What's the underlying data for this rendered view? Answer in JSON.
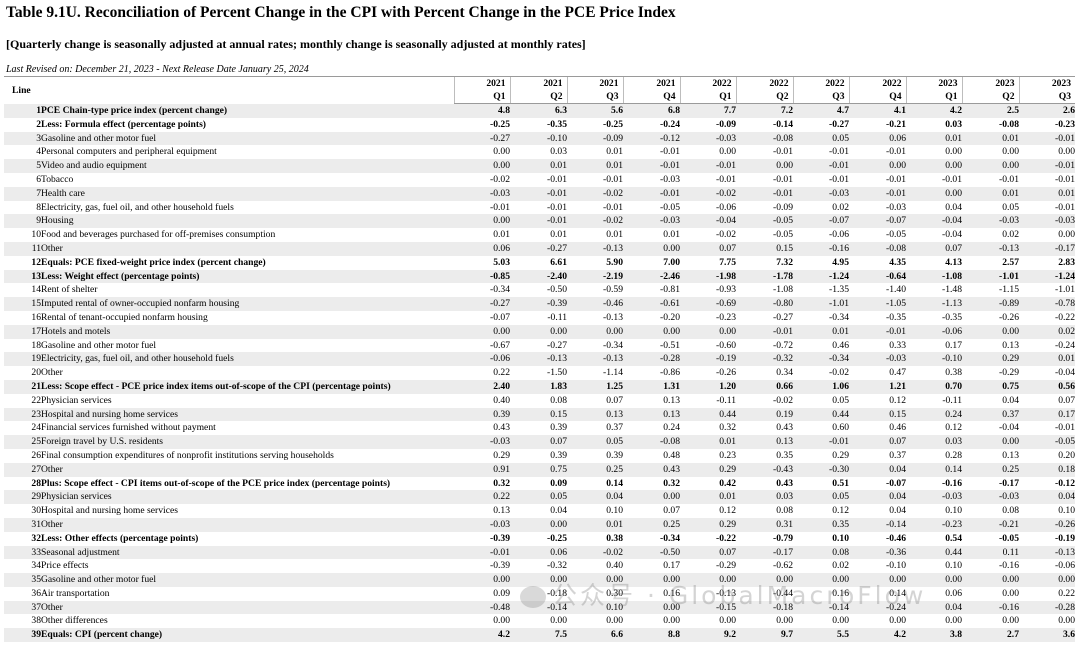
{
  "title": "Table 9.1U. Reconciliation of Percent Change in the CPI with Percent Change in the PCE Price Index",
  "subtitle": "[Quarterly change is seasonally adjusted at annual rates; monthly change is seasonally adjusted at monthly rates]",
  "revised": "Last Revised on: December 21, 2023 - Next Release Date January 25, 2024",
  "line_header": "Line",
  "periods": [
    {
      "year": "2021",
      "q": "Q1"
    },
    {
      "year": "2021",
      "q": "Q2"
    },
    {
      "year": "2021",
      "q": "Q3"
    },
    {
      "year": "2021",
      "q": "Q4"
    },
    {
      "year": "2022",
      "q": "Q1"
    },
    {
      "year": "2022",
      "q": "Q2"
    },
    {
      "year": "2022",
      "q": "Q3"
    },
    {
      "year": "2022",
      "q": "Q4"
    },
    {
      "year": "2023",
      "q": "Q1"
    },
    {
      "year": "2023",
      "q": "Q2"
    },
    {
      "year": "2023",
      "q": "Q3"
    }
  ],
  "rows": [
    {
      "line": "1",
      "label": "PCE Chain-type price index (percent change)",
      "level": 0,
      "bold": true,
      "values": [
        "4.8",
        "6.3",
        "5.6",
        "6.8",
        "7.7",
        "7.2",
        "4.7",
        "4.1",
        "4.2",
        "2.5",
        "2.6"
      ]
    },
    {
      "line": "2",
      "label": "Less: Formula effect (percentage points)",
      "level": 1,
      "bold": true,
      "values": [
        "-0.25",
        "-0.35",
        "-0.25",
        "-0.24",
        "-0.09",
        "-0.14",
        "-0.27",
        "-0.21",
        "0.03",
        "-0.08",
        "-0.23"
      ]
    },
    {
      "line": "3",
      "label": "Gasoline and other motor fuel",
      "level": 2,
      "bold": false,
      "values": [
        "-0.27",
        "-0.10",
        "-0.09",
        "-0.12",
        "-0.03",
        "-0.08",
        "0.05",
        "0.06",
        "0.01",
        "0.01",
        "-0.01"
      ]
    },
    {
      "line": "4",
      "label": "Personal computers and peripheral equipment",
      "level": 2,
      "bold": false,
      "values": [
        "0.00",
        "0.03",
        "0.01",
        "-0.01",
        "0.00",
        "-0.01",
        "-0.01",
        "-0.01",
        "0.00",
        "0.00",
        "0.00"
      ]
    },
    {
      "line": "5",
      "label": "Video and audio equipment",
      "level": 2,
      "bold": false,
      "values": [
        "0.00",
        "0.01",
        "0.01",
        "-0.01",
        "-0.01",
        "0.00",
        "-0.01",
        "0.00",
        "0.00",
        "0.00",
        "-0.01"
      ]
    },
    {
      "line": "6",
      "label": "Tobacco",
      "level": 2,
      "bold": false,
      "values": [
        "-0.02",
        "-0.01",
        "-0.01",
        "-0.03",
        "-0.01",
        "-0.01",
        "-0.01",
        "-0.01",
        "-0.01",
        "-0.01",
        "-0.01"
      ]
    },
    {
      "line": "7",
      "label": "Health care",
      "level": 2,
      "bold": false,
      "values": [
        "-0.03",
        "-0.01",
        "-0.02",
        "-0.01",
        "-0.02",
        "-0.01",
        "-0.03",
        "-0.01",
        "0.00",
        "0.01",
        "0.01"
      ]
    },
    {
      "line": "8",
      "label": "Electricity, gas, fuel oil, and other household fuels",
      "level": 2,
      "bold": false,
      "values": [
        "-0.01",
        "-0.01",
        "-0.01",
        "-0.05",
        "-0.06",
        "-0.09",
        "0.02",
        "-0.03",
        "0.04",
        "0.05",
        "-0.01"
      ]
    },
    {
      "line": "9",
      "label": "Housing",
      "level": 2,
      "bold": false,
      "values": [
        "0.00",
        "-0.01",
        "-0.02",
        "-0.03",
        "-0.04",
        "-0.05",
        "-0.07",
        "-0.07",
        "-0.04",
        "-0.03",
        "-0.03"
      ]
    },
    {
      "line": "10",
      "label": "Food and beverages purchased for off-premises consumption",
      "level": 2,
      "bold": false,
      "values": [
        "0.01",
        "0.01",
        "0.01",
        "0.01",
        "-0.02",
        "-0.05",
        "-0.06",
        "-0.05",
        "-0.04",
        "0.02",
        "0.00"
      ]
    },
    {
      "line": "11",
      "label": "Other",
      "level": 2,
      "bold": false,
      "values": [
        "0.06",
        "-0.27",
        "-0.13",
        "0.00",
        "0.07",
        "0.15",
        "-0.16",
        "-0.08",
        "0.07",
        "-0.13",
        "-0.17"
      ]
    },
    {
      "line": "12",
      "label": "Equals: PCE fixed-weight price index (percent change)",
      "level": 0,
      "bold": true,
      "values": [
        "5.03",
        "6.61",
        "5.90",
        "7.00",
        "7.75",
        "7.32",
        "4.95",
        "4.35",
        "4.13",
        "2.57",
        "2.83"
      ]
    },
    {
      "line": "13",
      "label": "Less: Weight effect (percentage points)",
      "level": 1,
      "bold": true,
      "values": [
        "-0.85",
        "-2.40",
        "-2.19",
        "-2.46",
        "-1.98",
        "-1.78",
        "-1.24",
        "-0.64",
        "-1.08",
        "-1.01",
        "-1.24"
      ]
    },
    {
      "line": "14",
      "label": "Rent of shelter",
      "level": 2,
      "bold": false,
      "values": [
        "-0.34",
        "-0.50",
        "-0.59",
        "-0.81",
        "-0.93",
        "-1.08",
        "-1.35",
        "-1.40",
        "-1.48",
        "-1.15",
        "-1.01"
      ]
    },
    {
      "line": "15",
      "label": "Imputed rental of owner-occupied nonfarm housing",
      "level": 3,
      "bold": false,
      "values": [
        "-0.27",
        "-0.39",
        "-0.46",
        "-0.61",
        "-0.69",
        "-0.80",
        "-1.01",
        "-1.05",
        "-1.13",
        "-0.89",
        "-0.78"
      ]
    },
    {
      "line": "16",
      "label": "Rental of tenant-occupied nonfarm housing",
      "level": 3,
      "bold": false,
      "values": [
        "-0.07",
        "-0.11",
        "-0.13",
        "-0.20",
        "-0.23",
        "-0.27",
        "-0.34",
        "-0.35",
        "-0.35",
        "-0.26",
        "-0.22"
      ]
    },
    {
      "line": "17",
      "label": "Hotels and motels",
      "level": 2,
      "bold": false,
      "values": [
        "0.00",
        "0.00",
        "0.00",
        "0.00",
        "0.00",
        "-0.01",
        "0.01",
        "-0.01",
        "-0.06",
        "0.00",
        "0.02"
      ]
    },
    {
      "line": "18",
      "label": "Gasoline and other motor fuel",
      "level": 2,
      "bold": false,
      "values": [
        "-0.67",
        "-0.27",
        "-0.34",
        "-0.51",
        "-0.60",
        "-0.72",
        "0.46",
        "0.33",
        "0.17",
        "0.13",
        "-0.24"
      ]
    },
    {
      "line": "19",
      "label": "Electricity, gas, fuel oil, and other household fuels",
      "level": 2,
      "bold": false,
      "values": [
        "-0.06",
        "-0.13",
        "-0.13",
        "-0.28",
        "-0.19",
        "-0.32",
        "-0.34",
        "-0.03",
        "-0.10",
        "0.29",
        "0.01"
      ]
    },
    {
      "line": "20",
      "label": "Other",
      "level": 2,
      "bold": false,
      "values": [
        "0.22",
        "-1.50",
        "-1.14",
        "-0.86",
        "-0.26",
        "0.34",
        "-0.02",
        "0.47",
        "0.38",
        "-0.29",
        "-0.04"
      ]
    },
    {
      "line": "21",
      "label": "Less: Scope effect - PCE price index items out-of-scope of the CPI (percentage points)",
      "level": 1,
      "bold": true,
      "values": [
        "2.40",
        "1.83",
        "1.25",
        "1.31",
        "1.20",
        "0.66",
        "1.06",
        "1.21",
        "0.70",
        "0.75",
        "0.56"
      ]
    },
    {
      "line": "22",
      "label": "Physician services",
      "level": 2,
      "bold": false,
      "values": [
        "0.40",
        "0.08",
        "0.07",
        "0.13",
        "-0.11",
        "-0.02",
        "0.05",
        "0.12",
        "-0.11",
        "0.04",
        "0.07"
      ]
    },
    {
      "line": "23",
      "label": "Hospital and nursing home services",
      "level": 2,
      "bold": false,
      "values": [
        "0.39",
        "0.15",
        "0.13",
        "0.13",
        "0.44",
        "0.19",
        "0.44",
        "0.15",
        "0.24",
        "0.37",
        "0.17"
      ]
    },
    {
      "line": "24",
      "label": "Financial services furnished without payment",
      "level": 2,
      "bold": false,
      "values": [
        "0.43",
        "0.39",
        "0.37",
        "0.24",
        "0.32",
        "0.43",
        "0.60",
        "0.46",
        "0.12",
        "-0.04",
        "-0.01"
      ]
    },
    {
      "line": "25",
      "label": "Foreign travel by U.S. residents",
      "level": 2,
      "bold": false,
      "values": [
        "-0.03",
        "0.07",
        "0.05",
        "-0.08",
        "0.01",
        "0.13",
        "-0.01",
        "0.07",
        "0.03",
        "0.00",
        "-0.05"
      ]
    },
    {
      "line": "26",
      "label": "Final consumption expenditures of nonprofit institutions serving households",
      "level": 2,
      "bold": false,
      "values": [
        "0.29",
        "0.39",
        "0.39",
        "0.48",
        "0.23",
        "0.35",
        "0.29",
        "0.37",
        "0.28",
        "0.13",
        "0.20"
      ]
    },
    {
      "line": "27",
      "label": "Other",
      "level": 2,
      "bold": false,
      "values": [
        "0.91",
        "0.75",
        "0.25",
        "0.43",
        "0.29",
        "-0.43",
        "-0.30",
        "0.04",
        "0.14",
        "0.25",
        "0.18"
      ]
    },
    {
      "line": "28",
      "label": "Plus: Scope effect - CPI items out-of-scope of the PCE price index (percentage points)",
      "level": 1,
      "bold": true,
      "values": [
        "0.32",
        "0.09",
        "0.14",
        "0.32",
        "0.42",
        "0.43",
        "0.51",
        "-0.07",
        "-0.16",
        "-0.17",
        "-0.12"
      ]
    },
    {
      "line": "29",
      "label": "Physician services",
      "level": 2,
      "bold": false,
      "values": [
        "0.22",
        "0.05",
        "0.04",
        "0.00",
        "0.01",
        "0.03",
        "0.05",
        "0.04",
        "-0.03",
        "-0.03",
        "0.04"
      ]
    },
    {
      "line": "30",
      "label": "Hospital and nursing home services",
      "level": 2,
      "bold": false,
      "values": [
        "0.13",
        "0.04",
        "0.10",
        "0.07",
        "0.12",
        "0.08",
        "0.12",
        "0.04",
        "0.10",
        "0.08",
        "0.10"
      ]
    },
    {
      "line": "31",
      "label": "Other",
      "level": 2,
      "bold": false,
      "values": [
        "-0.03",
        "0.00",
        "0.01",
        "0.25",
        "0.29",
        "0.31",
        "0.35",
        "-0.14",
        "-0.23",
        "-0.21",
        "-0.26"
      ]
    },
    {
      "line": "32",
      "label": "Less: Other effects (percentage points)",
      "level": 1,
      "bold": true,
      "values": [
        "-0.39",
        "-0.25",
        "0.38",
        "-0.34",
        "-0.22",
        "-0.79",
        "0.10",
        "-0.46",
        "0.54",
        "-0.05",
        "-0.19"
      ]
    },
    {
      "line": "33",
      "label": "Seasonal adjustment",
      "level": 2,
      "bold": false,
      "values": [
        "-0.01",
        "0.06",
        "-0.02",
        "-0.50",
        "0.07",
        "-0.17",
        "0.08",
        "-0.36",
        "0.44",
        "0.11",
        "-0.13"
      ]
    },
    {
      "line": "34",
      "label": "Price effects",
      "level": 2,
      "bold": false,
      "values": [
        "-0.39",
        "-0.32",
        "0.40",
        "0.17",
        "-0.29",
        "-0.62",
        "0.02",
        "-0.10",
        "0.10",
        "-0.16",
        "-0.06"
      ]
    },
    {
      "line": "35",
      "label": "Gasoline and other motor fuel",
      "level": 3,
      "bold": false,
      "values": [
        "0.00",
        "0.00",
        "0.00",
        "0.00",
        "0.00",
        "0.00",
        "0.00",
        "0.00",
        "0.00",
        "0.00",
        "0.00"
      ]
    },
    {
      "line": "36",
      "label": "Air transportation",
      "level": 3,
      "bold": false,
      "values": [
        "0.09",
        "-0.18",
        "0.30",
        "0.16",
        "-0.13",
        "-0.44",
        "0.16",
        "0.14",
        "0.06",
        "0.00",
        "0.22"
      ]
    },
    {
      "line": "37",
      "label": "Other",
      "level": 3,
      "bold": false,
      "values": [
        "-0.48",
        "-0.14",
        "0.10",
        "0.00",
        "-0.15",
        "-0.18",
        "-0.14",
        "-0.24",
        "0.04",
        "-0.16",
        "-0.28"
      ]
    },
    {
      "line": "38",
      "label": "Other differences",
      "level": 2,
      "bold": false,
      "values": [
        "0.00",
        "0.00",
        "0.00",
        "0.00",
        "0.00",
        "0.00",
        "0.00",
        "0.00",
        "0.00",
        "0.00",
        "0.00"
      ]
    },
    {
      "line": "39",
      "label": "Equals: CPI (percent change)",
      "level": 0,
      "bold": true,
      "values": [
        "4.2",
        "7.5",
        "6.6",
        "8.8",
        "9.2",
        "9.7",
        "5.5",
        "4.2",
        "3.8",
        "2.7",
        "3.6"
      ]
    }
  ],
  "watermark": "公众号 · GlobalMacroFlow"
}
